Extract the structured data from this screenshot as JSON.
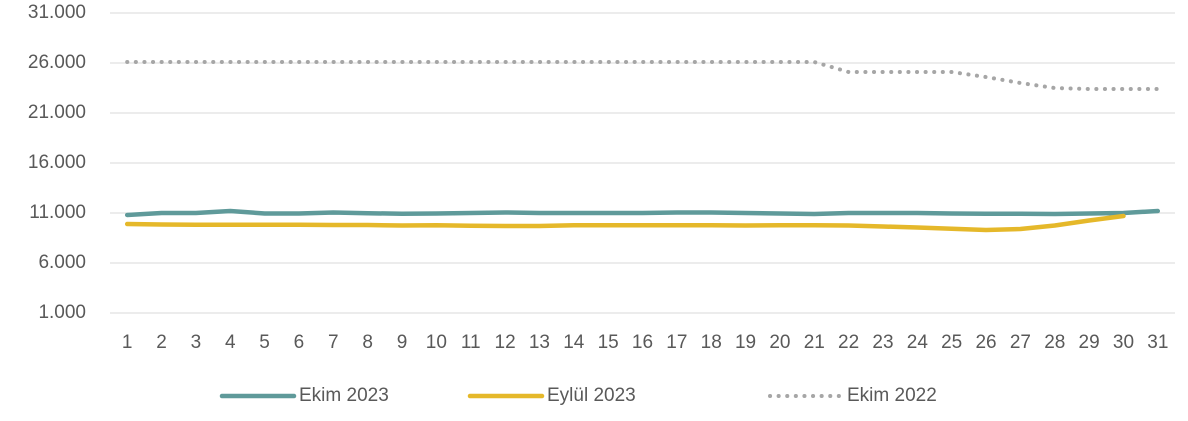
{
  "chart_data": {
    "type": "line",
    "categories": [
      "1",
      "2",
      "3",
      "4",
      "5",
      "6",
      "7",
      "8",
      "9",
      "10",
      "11",
      "12",
      "13",
      "14",
      "15",
      "16",
      "17",
      "18",
      "19",
      "20",
      "21",
      "22",
      "23",
      "24",
      "25",
      "26",
      "27",
      "28",
      "29",
      "30",
      "31"
    ],
    "series": [
      {
        "name": "Ekim 2023",
        "color": "#5f9a9a",
        "style": "solid",
        "values": [
          10800,
          11000,
          11000,
          11200,
          10950,
          10950,
          11050,
          10980,
          10920,
          10950,
          11000,
          11050,
          11000,
          11000,
          11000,
          11000,
          11050,
          11050,
          11000,
          10950,
          10900,
          11000,
          11000,
          11000,
          10950,
          10920,
          10920,
          10900,
          10950,
          11000,
          11200
        ]
      },
      {
        "name": "Eylül 2023",
        "color": "#e5b82a",
        "style": "solid",
        "values": [
          9900,
          9850,
          9820,
          9820,
          9820,
          9820,
          9800,
          9800,
          9750,
          9780,
          9720,
          9700,
          9700,
          9780,
          9780,
          9780,
          9780,
          9780,
          9750,
          9780,
          9780,
          9750,
          9650,
          9550,
          9420,
          9300,
          9400,
          9750,
          10250,
          10700,
          null
        ]
      },
      {
        "name": "Ekim 2022",
        "color": "#a6a6a6",
        "style": "dotted",
        "values": [
          26100,
          26100,
          26100,
          26100,
          26100,
          26100,
          26100,
          26100,
          26100,
          26100,
          26100,
          26100,
          26100,
          26100,
          26100,
          26100,
          26100,
          26100,
          26100,
          26100,
          26100,
          25100,
          25100,
          25100,
          25100,
          24600,
          24000,
          23500,
          23400,
          23400,
          23400
        ]
      }
    ],
    "ylim": [
      1000,
      31000
    ],
    "yticks": [
      {
        "value": 1000,
        "label": "1.000"
      },
      {
        "value": 6000,
        "label": "6.000"
      },
      {
        "value": 11000,
        "label": "11.000"
      },
      {
        "value": 16000,
        "label": "16.000"
      },
      {
        "value": 21000,
        "label": "21.000"
      },
      {
        "value": 26000,
        "label": "26.000"
      },
      {
        "value": 31000,
        "label": "31.000"
      }
    ],
    "grid": true,
    "legend": "bottom"
  }
}
